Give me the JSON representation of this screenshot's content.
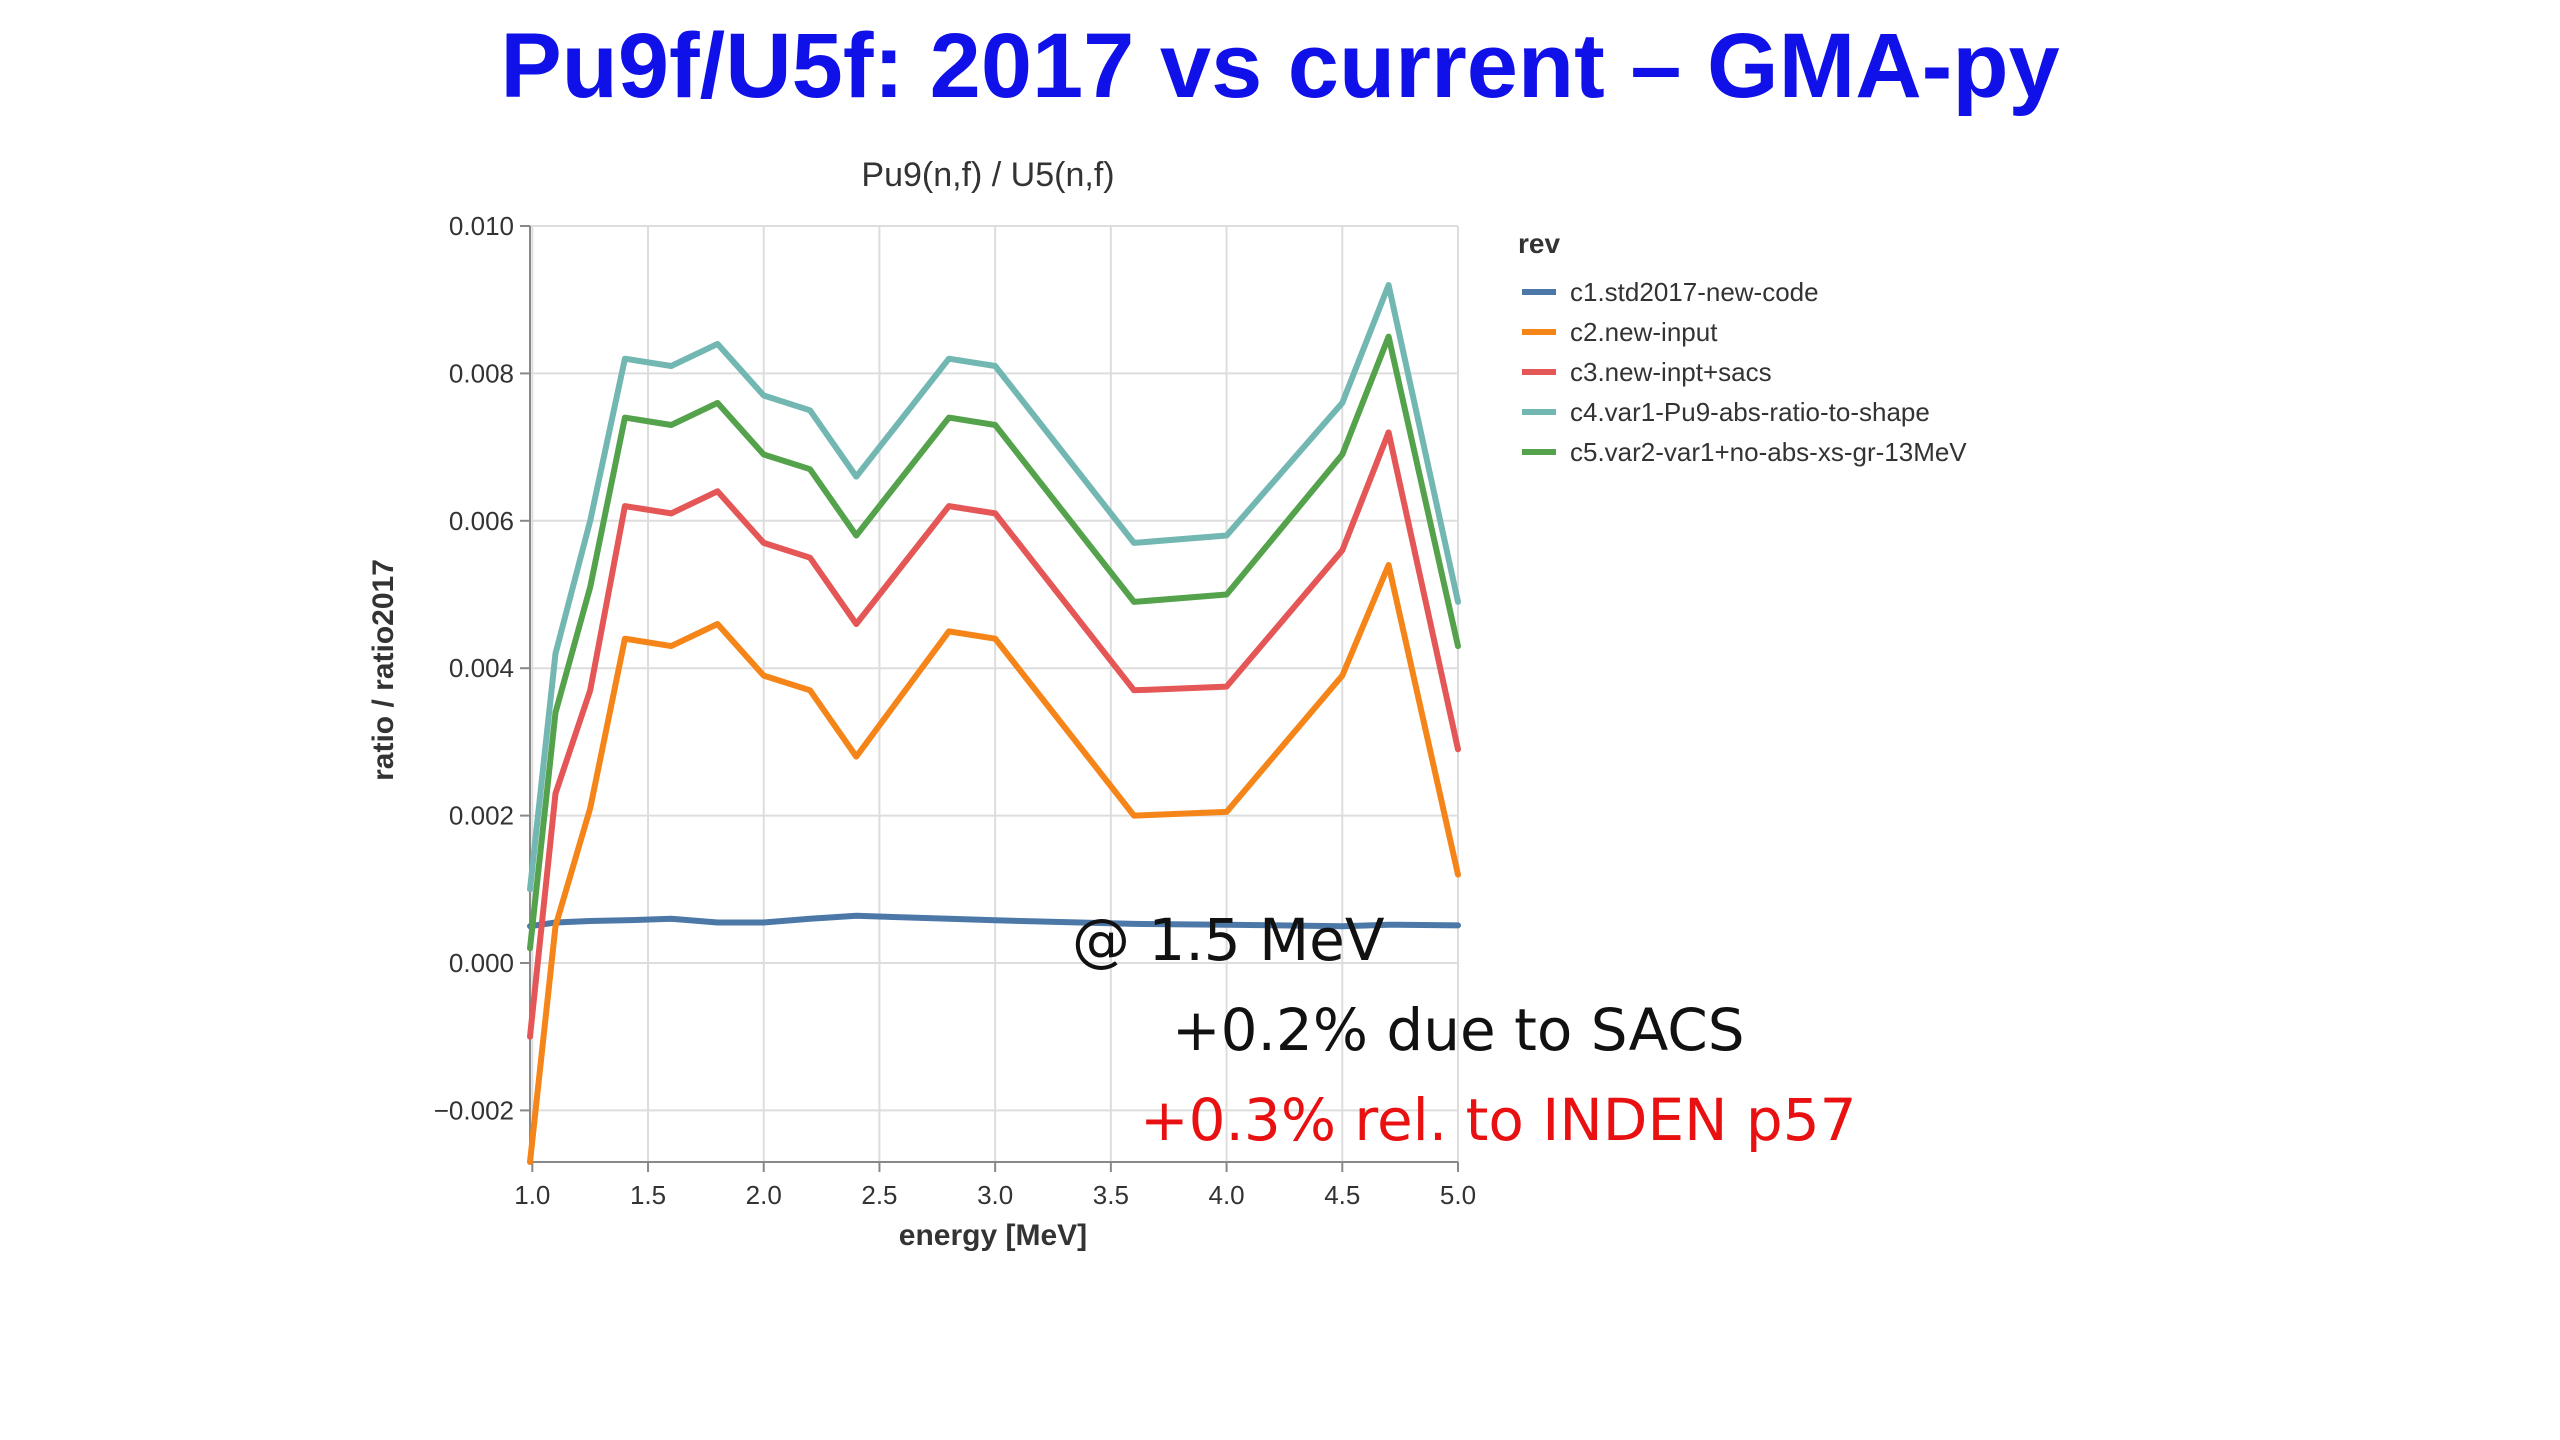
{
  "slide": {
    "title": "Pu9f/U5f: 2017 vs current – GMA-py",
    "title_color": "#1010e8"
  },
  "annotations": {
    "line1": "@ 1.5 MeV",
    "line2": "+0.2%  due to SACS",
    "line3": "+0.3% rel. to INDEN p57",
    "line3_color": "#e81010"
  },
  "chart_data": {
    "type": "line",
    "title": "Pu9(n,f) / U5(n,f)",
    "xlabel": "energy [MeV]",
    "ylabel": "ratio / ratio2017",
    "xlim": [
      0.99,
      5.0
    ],
    "ylim": [
      -0.0027,
      0.01
    ],
    "x_ticks": [
      1.0,
      1.5,
      2.0,
      2.5,
      3.0,
      3.5,
      4.0,
      4.5,
      5.0
    ],
    "x_tick_labels": [
      "1.0",
      "1.5",
      "2.0",
      "2.5",
      "3.0",
      "3.5",
      "4.0",
      "4.5",
      "5.0"
    ],
    "y_ticks": [
      -0.002,
      0.0,
      0.002,
      0.004,
      0.006,
      0.008,
      0.01
    ],
    "y_tick_labels": [
      "−0.002",
      "0.000",
      "0.002",
      "0.004",
      "0.006",
      "0.008",
      "0.010"
    ],
    "grid": true,
    "legend_title": "rev",
    "legend_position": "right",
    "x": [
      0.99,
      1.1,
      1.25,
      1.4,
      1.6,
      1.8,
      2.0,
      2.2,
      2.4,
      2.8,
      3.0,
      3.6,
      4.0,
      4.5,
      4.7,
      5.0
    ],
    "series": [
      {
        "name": "c1.std2017-new-code",
        "color": "#4c78a8",
        "values": [
          0.0005,
          0.00055,
          0.00057,
          0.00058,
          0.0006,
          0.00055,
          0.00055,
          0.0006,
          0.00064,
          0.0006,
          0.00058,
          0.00053,
          0.00052,
          0.0005,
          0.00052,
          0.00051
        ]
      },
      {
        "name": "c2.new-input",
        "color": "#f58518",
        "values": [
          -0.0027,
          0.0005,
          0.0021,
          0.0044,
          0.0043,
          0.0046,
          0.0039,
          0.0037,
          0.0028,
          0.0045,
          0.0044,
          0.002,
          0.00205,
          0.0039,
          0.0054,
          0.0012
        ]
      },
      {
        "name": "c3.new-inpt+sacs",
        "color": "#e45756",
        "values": [
          -0.001,
          0.0023,
          0.0037,
          0.0062,
          0.0061,
          0.0064,
          0.0057,
          0.0055,
          0.0046,
          0.0062,
          0.0061,
          0.0037,
          0.00375,
          0.0056,
          0.0072,
          0.0029
        ]
      },
      {
        "name": "c4.var1-Pu9-abs-ratio-to-shape",
        "color": "#72b7b2",
        "values": [
          0.001,
          0.0042,
          0.006,
          0.0082,
          0.0081,
          0.0084,
          0.0077,
          0.0075,
          0.0066,
          0.0082,
          0.0081,
          0.0057,
          0.0058,
          0.0076,
          0.0092,
          0.0049
        ]
      },
      {
        "name": "c5.var2-var1+no-abs-xs-gr-13MeV",
        "color": "#54a24b",
        "values": [
          0.0002,
          0.0034,
          0.0051,
          0.0074,
          0.0073,
          0.0076,
          0.0069,
          0.0067,
          0.0058,
          0.0074,
          0.0073,
          0.0049,
          0.005,
          0.0069,
          0.0085,
          0.0043
        ]
      }
    ]
  }
}
